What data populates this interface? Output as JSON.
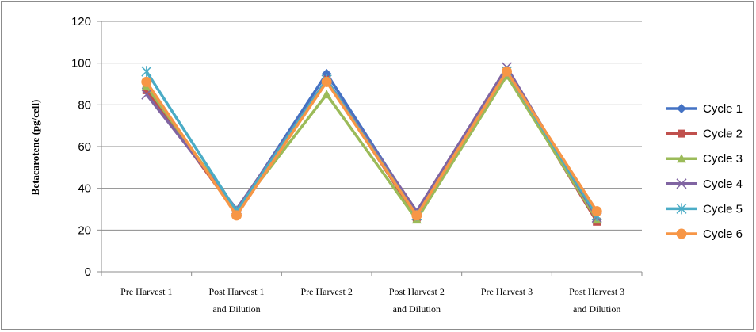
{
  "chart_data": {
    "type": "line",
    "title": "",
    "xlabel": "",
    "ylabel": "Betacarotene (pg/cell)",
    "categories": [
      [
        "Pre Harvest 1"
      ],
      [
        "Post Harvest 1",
        "and Dilution"
      ],
      [
        "Pre Harvest 2"
      ],
      [
        "Post Harvest 2",
        "and Dilution"
      ],
      [
        "Pre Harvest 3"
      ],
      [
        "Post Harvest 3",
        "and Dilution"
      ]
    ],
    "ylim": [
      0,
      120
    ],
    "yticks": [
      0,
      20,
      40,
      60,
      80,
      100,
      120
    ],
    "grid": true,
    "legend_position": "right",
    "series": [
      {
        "name": "Cycle 1",
        "color": "#4472C4",
        "marker": "diamond",
        "values": [
          88,
          29,
          95,
          28,
          96,
          25
        ]
      },
      {
        "name": "Cycle 2",
        "color": "#C0504D",
        "marker": "square",
        "values": [
          87,
          28,
          92,
          26,
          95,
          24
        ]
      },
      {
        "name": "Cycle 3",
        "color": "#9BBB59",
        "marker": "triangle",
        "values": [
          89,
          29,
          85,
          25,
          94,
          25
        ]
      },
      {
        "name": "Cycle 4",
        "color": "#8064A2",
        "marker": "x",
        "values": [
          85,
          30,
          92,
          29,
          98,
          26
        ]
      },
      {
        "name": "Cycle 5",
        "color": "#4BACC6",
        "marker": "star",
        "values": [
          96,
          29,
          92,
          27,
          96,
          27
        ]
      },
      {
        "name": "Cycle 6",
        "color": "#F79646",
        "marker": "circle",
        "values": [
          91,
          27,
          91,
          27,
          96,
          29
        ]
      }
    ]
  }
}
